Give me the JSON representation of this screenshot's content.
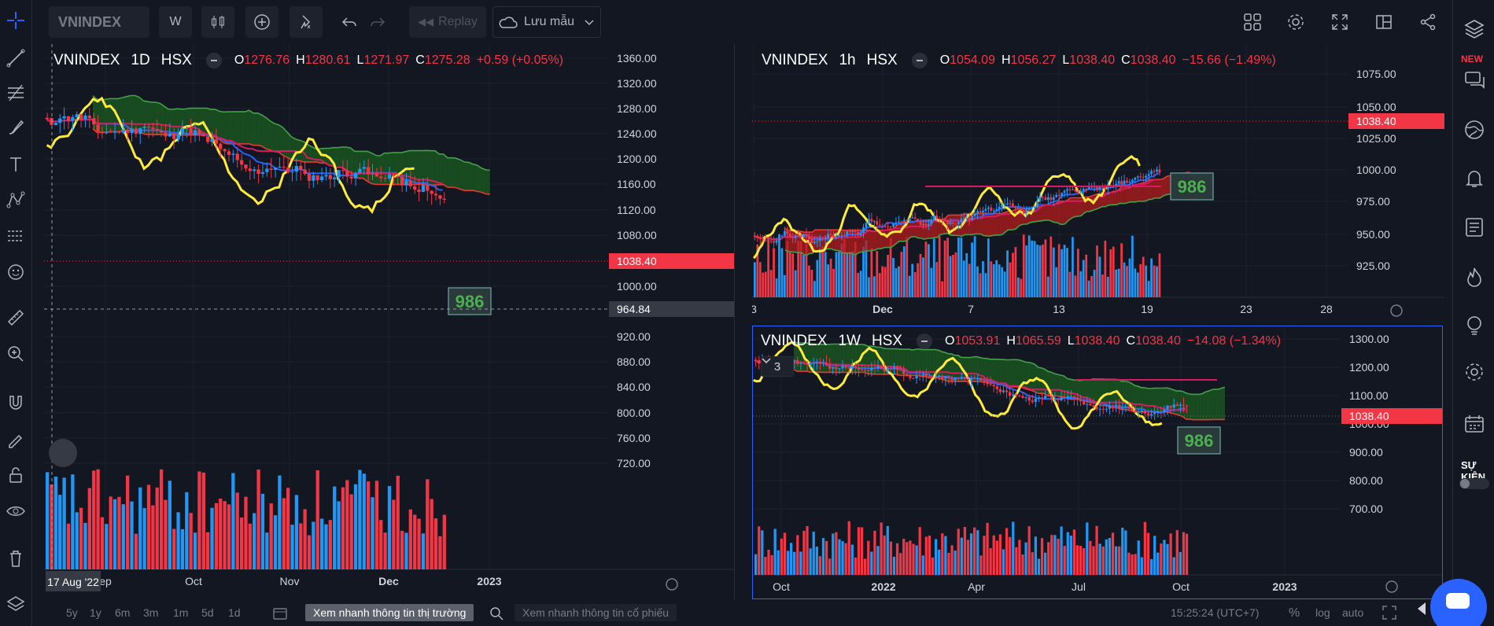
{
  "toolbar": {
    "symbol": "VNINDEX",
    "interval": "W",
    "replay_label": "Replay",
    "save_label": "Lưu mẫu"
  },
  "charts": {
    "daily": {
      "symbol": "VNINDEX",
      "interval": "1D",
      "exchange": "HSX",
      "o_label": "O",
      "o": "1276.76",
      "h_label": "H",
      "h": "1280.61",
      "l_label": "L",
      "l": "1271.97",
      "c_label": "C",
      "c": "1275.28",
      "change": "+0.59 (+0.05%)",
      "price_axis": [
        "1360.00",
        "1320.00",
        "1280.00",
        "1240.00",
        "1200.00",
        "1160.00",
        "1120.00",
        "1080.00",
        "1000.00",
        "920.00",
        "880.00",
        "840.00",
        "800.00",
        "760.00",
        "720.00"
      ],
      "last_price": "1038.40",
      "crosshair_price": "964.84",
      "crosshair_date": "17 Aug '22",
      "time_axis": [
        "ep",
        "Oct",
        "Nov",
        "Dec",
        "2023"
      ],
      "level_label": "986"
    },
    "hourly": {
      "symbol": "VNINDEX",
      "interval": "1h",
      "exchange": "HSX",
      "o_label": "O",
      "o": "1054.09",
      "h_label": "H",
      "h": "1056.27",
      "l_label": "L",
      "l": "1038.40",
      "c_label": "C",
      "c": "1038.40",
      "change": "−15.66 (−1.49%)",
      "price_axis": [
        "1075.00",
        "1050.00",
        "1025.00",
        "1000.00",
        "975.00",
        "950.00",
        "925.00"
      ],
      "last_price": "1038.40",
      "time_axis": [
        "3",
        "Dec",
        "7",
        "13",
        "19",
        "23",
        "28"
      ],
      "level_label": "986"
    },
    "weekly": {
      "symbol": "VNINDEX",
      "interval": "1W",
      "exchange": "HSX",
      "o_label": "O",
      "o": "1053.91",
      "h_label": "H",
      "h": "1065.59",
      "l_label": "L",
      "l": "1038.40",
      "c_label": "C",
      "c": "1038.40",
      "change": "−14.08 (−1.34%)",
      "indicator_count": "3",
      "price_axis": [
        "1300.00",
        "1200.00",
        "1100.00",
        "1000.00",
        "900.00",
        "800.00",
        "700.00"
      ],
      "last_price": "1038.40",
      "time_axis": [
        "Oct",
        "2022",
        "Apr",
        "Jul",
        "Oct",
        "2023"
      ],
      "level_label": "986"
    }
  },
  "bottom": {
    "ranges": [
      "5y",
      "1y",
      "6m",
      "3m",
      "1m",
      "5d",
      "1d"
    ],
    "quick_market": "Xem nhanh thông tin thị trường",
    "quick_stock": "Xem nhanh thông tin cổ phiếu",
    "clock": "15:25:24 (UTC+7)",
    "percent": "%",
    "log": "log",
    "auto": "auto"
  },
  "rightbar": {
    "new_badge": "NEW",
    "events_label": "SỰ KIỆN"
  },
  "colors": {
    "up": "#2196f3",
    "down": "#f23645",
    "tenkan": "#2962ff",
    "kijun": "#d81b60",
    "chikou": "#ffeb3b",
    "cloud_up": "#1b5e20",
    "cloud_down": "#b71c1c"
  }
}
